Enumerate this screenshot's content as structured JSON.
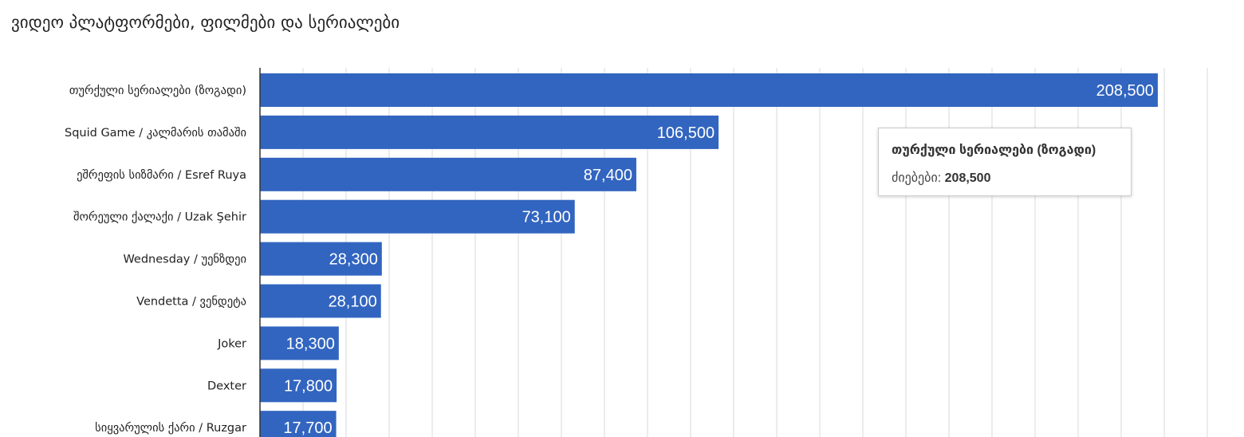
{
  "title": "ვიდეო პლატფორმები, ფილმები და სერიალები",
  "colors": {
    "bar": "#3265c0",
    "grid": "#d9d9d9",
    "axis": "#333333",
    "bar_label": "#ffffff",
    "tick_label": "#222222"
  },
  "tooltip": {
    "title": "თურქული სერიალები (ზოგადი)",
    "label": "ძიებები:",
    "value": "208,500"
  },
  "chart_data": {
    "type": "bar",
    "orientation": "horizontal",
    "title": "ვიდეო პლატფორმები, ფილმები და სერიალები",
    "categories": [
      "თურქული სერიალები (ზოგადი)",
      "Squid Game / კალმარის თამაში",
      "ეშრეფის სიზმარი / Esref Ruya",
      "შორეული ქალაქი / Uzak Şehir",
      "Wednesday / უენზდეი",
      "Vendetta / ვენდეტა",
      "Joker",
      "Dexter",
      "სიყვარულის ქარი / Ruzgar"
    ],
    "values": [
      208500,
      106500,
      87400,
      73100,
      28300,
      28100,
      18300,
      17800,
      17700
    ],
    "value_labels": [
      "208,500",
      "106,500",
      "87,400",
      "73,100",
      "28,300",
      "28,100",
      "18,300",
      "17,800",
      "17,700"
    ],
    "xlim": [
      0,
      220000
    ],
    "grid": true,
    "xlabel": "",
    "ylabel": ""
  }
}
